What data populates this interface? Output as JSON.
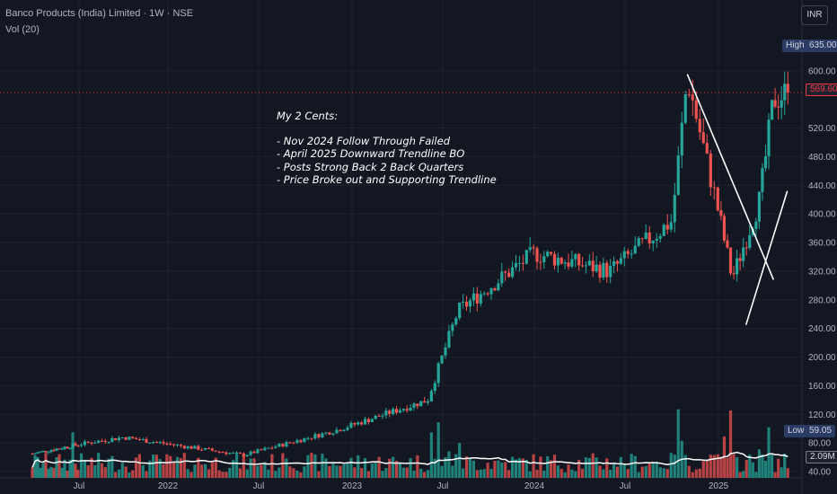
{
  "header": {
    "title": "Banco Products (India) Limited · 1W · NSE",
    "volume_label": "Vol (20)"
  },
  "currency_button": "INR",
  "annotation": {
    "title": "My 2 Cents:",
    "lines": [
      "- Nov 2024 Follow Through Failed",
      "- April 2025 Downward Trendline BO",
      "- Posts Strong Back 2 Back Quarters",
      "- Price Broke out and Supporting Trendline"
    ]
  },
  "price_tags": {
    "high_label": "High",
    "high_value": "635.00",
    "current_value": "569.60",
    "low_label": "Low",
    "low_value": "59.05",
    "volume_value": "2.09M"
  },
  "colors": {
    "up": "#26a69a",
    "down": "#ef5350",
    "background": "#131722",
    "current": "#f23645",
    "high_low_tag": "#2a3c66"
  },
  "chart_data": {
    "type": "candlestick",
    "title": "Banco Products (India) Limited · 1W · NSE",
    "y_axis": {
      "ticks": [
        40,
        80,
        120,
        160,
        200,
        240,
        280,
        320,
        360,
        400,
        440,
        480,
        520,
        600
      ],
      "range": [
        15,
        680
      ],
      "unit": "INR"
    },
    "x_axis": {
      "ticks": [
        "Jul",
        "2022",
        "Jul",
        "2023",
        "Jul",
        "2024",
        "Jul",
        "2025"
      ]
    },
    "key_points": [
      {
        "date": "2021-03",
        "close": 65
      },
      {
        "date": "2021-10",
        "close": 88
      },
      {
        "date": "2022-06",
        "close": 63
      },
      {
        "date": "2022-12",
        "close": 98
      },
      {
        "date": "2023-06",
        "close": 140
      },
      {
        "date": "2023-08",
        "close": 265
      },
      {
        "date": "2024-01",
        "close": 345
      },
      {
        "date": "2024-06",
        "close": 320
      },
      {
        "date": "2024-10",
        "close": 390
      },
      {
        "date": "2024-11",
        "close": 590
      },
      {
        "date": "2025-02",
        "close": 310
      },
      {
        "date": "2025-04",
        "close": 420
      },
      {
        "date": "2025-05",
        "close": 560
      },
      {
        "date": "2025-06",
        "close": 569.6
      }
    ],
    "high": 635.0,
    "low": 59.05,
    "last_price": 569.6,
    "volume": {
      "last": "2.09M",
      "moving_average_period": 20
    },
    "trendlines": [
      {
        "from": {
          "date": "2024-11",
          "price": 595
        },
        "to": {
          "date": "2025-05",
          "price": 308
        }
      },
      {
        "from": {
          "date": "2025-03",
          "price": 245
        },
        "to": {
          "date": "2025-06",
          "price": 432
        }
      }
    ]
  }
}
